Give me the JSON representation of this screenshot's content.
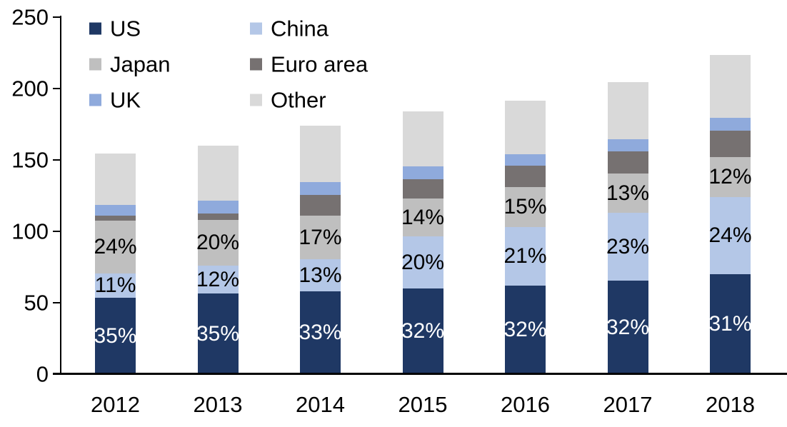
{
  "chart_data": {
    "type": "bar",
    "stacked": true,
    "title": "",
    "xlabel": "",
    "ylabel": "",
    "categories": [
      "2012",
      "2013",
      "2014",
      "2015",
      "2016",
      "2017",
      "2018"
    ],
    "series": [
      {
        "name": "US",
        "color": "#1F3864",
        "values": [
          53.5,
          56.5,
          58,
          60,
          62,
          65.5,
          70
        ],
        "labels": [
          "35%",
          "35%",
          "33%",
          "32%",
          "32%",
          "32%",
          "31%"
        ],
        "label_color": "#FFFFFF"
      },
      {
        "name": "China",
        "color": "#B4C7E7",
        "values": [
          17,
          19.5,
          22.5,
          36.5,
          41,
          47.5,
          54
        ],
        "labels": [
          "11%",
          "12%",
          "13%",
          "20%",
          "21%",
          "23%",
          "24%"
        ],
        "label_color": "#000000"
      },
      {
        "name": "Japan",
        "color": "#BFBFBF",
        "values": [
          37,
          32,
          30.5,
          26.5,
          28,
          27.5,
          28
        ],
        "labels": [
          "24%",
          "20%",
          "17%",
          "14%",
          "15%",
          "13%",
          "12%"
        ],
        "label_color": "#000000"
      },
      {
        "name": "Euro area",
        "color": "#767171",
        "values": [
          3.5,
          4.5,
          14.5,
          13.5,
          15,
          15.5,
          18.5
        ],
        "labels": null,
        "label_color": null
      },
      {
        "name": "UK",
        "color": "#8FAADC",
        "values": [
          7.5,
          9,
          9,
          9,
          8,
          8.5,
          9
        ],
        "labels": null,
        "label_color": null
      },
      {
        "name": "Other",
        "color": "#D9D9D9",
        "values": [
          36,
          38.5,
          39.5,
          38.5,
          37.5,
          40,
          44
        ],
        "labels": null,
        "label_color": null
      }
    ],
    "totals": [
      154.5,
      160,
      174,
      184,
      191.5,
      204.5,
      224
    ],
    "yticks": [
      0,
      50,
      100,
      150,
      200,
      250
    ],
    "ylim": [
      0,
      250
    ],
    "grid": false,
    "legend_position": "top-left",
    "legend_columns": 2,
    "axis_color": "#000000",
    "text_color": "#000000"
  }
}
